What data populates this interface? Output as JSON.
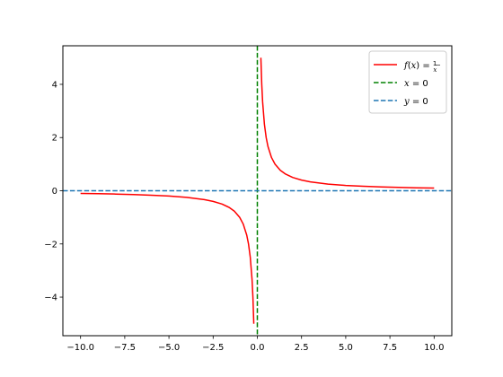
{
  "chart_data": {
    "type": "line",
    "title": "",
    "xlabel": "",
    "ylabel": "",
    "xlim": [
      -11.0,
      11.0
    ],
    "ylim": [
      -5.45,
      5.45
    ],
    "xticks": [
      -10.0,
      -7.5,
      -5.0,
      -2.5,
      0.0,
      2.5,
      5.0,
      7.5,
      10.0
    ],
    "xtick_labels": [
      "−10.0",
      "−7.5",
      "−5.0",
      "−2.5",
      "0.0",
      "2.5",
      "5.0",
      "7.5",
      "10.0"
    ],
    "yticks": [
      -4,
      -2,
      0,
      2,
      4
    ],
    "ytick_labels": [
      "−4",
      "−2",
      "0",
      "2",
      "4"
    ],
    "grid": false,
    "legend": {
      "placement": "upper right",
      "entries": [
        {
          "label": "f(x) = 1/x"
        },
        {
          "label": "x = 0"
        },
        {
          "label": "y = 0"
        }
      ]
    },
    "series": [
      {
        "label": "f(x) = 1/x",
        "style": "solid",
        "color": "#ff0000",
        "segments": [
          {
            "x": [
              -10,
              -9,
              -8,
              -7,
              -6,
              -5,
              -4,
              -3,
              -2.5,
              -2,
              -1.6,
              -1.3,
              -1.0,
              -0.8,
              -0.6,
              -0.5,
              -0.4,
              -0.3,
              -0.25,
              -0.2
            ],
            "y": [
              -0.1,
              -0.1111,
              -0.125,
              -0.1429,
              -0.1667,
              -0.2,
              -0.25,
              -0.3333,
              -0.4,
              -0.5,
              -0.625,
              -0.7692,
              -1.0,
              -1.25,
              -1.6667,
              -2.0,
              -2.5,
              -3.3333,
              -4.0,
              -5.0
            ]
          },
          {
            "x": [
              0.2,
              0.25,
              0.3,
              0.4,
              0.5,
              0.6,
              0.8,
              1.0,
              1.3,
              1.6,
              2,
              2.5,
              3,
              4,
              5,
              6,
              7,
              8,
              9,
              10
            ],
            "y": [
              5.0,
              4.0,
              3.3333,
              2.5,
              2.0,
              1.6667,
              1.25,
              1.0,
              0.7692,
              0.625,
              0.5,
              0.4,
              0.3333,
              0.25,
              0.2,
              0.1667,
              0.1429,
              0.125,
              0.1111,
              0.1
            ]
          }
        ]
      },
      {
        "label": "x = 0",
        "style": "dashed",
        "color": "#008000",
        "orientation": "vertical",
        "x": 0
      },
      {
        "label": "y = 0",
        "style": "dashed",
        "color": "#1f77b4",
        "orientation": "horizontal",
        "y": 0
      }
    ]
  }
}
